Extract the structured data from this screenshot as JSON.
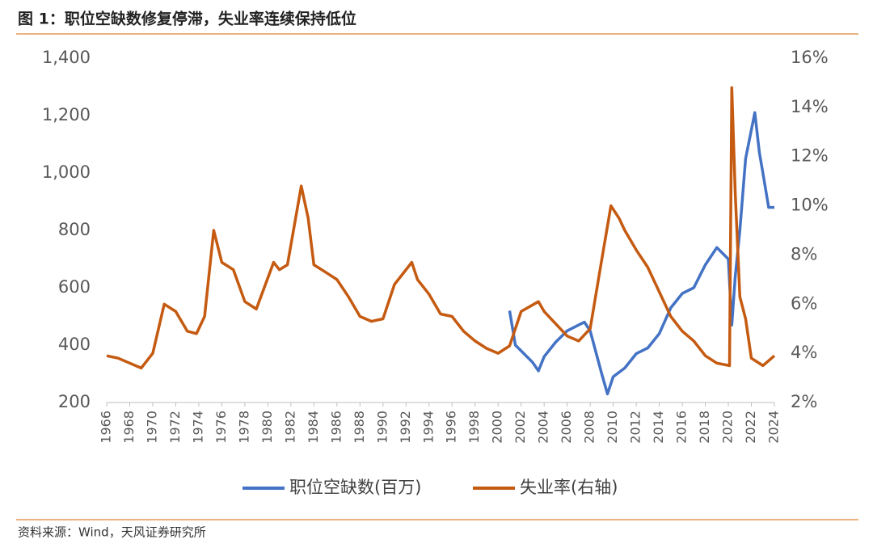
{
  "chart_data": {
    "type": "line",
    "title": "图 1：职位空缺数修复停滞，失业率连续保持低位",
    "source": "资料来源：Wind，天风证券研究所",
    "xlim": [
      1966,
      2024
    ],
    "xticks": [
      1966,
      1968,
      1970,
      1972,
      1974,
      1976,
      1978,
      1980,
      1982,
      1984,
      1986,
      1988,
      1990,
      1992,
      1994,
      1996,
      1998,
      2000,
      2002,
      2004,
      2006,
      2008,
      2010,
      2012,
      2014,
      2016,
      2018,
      2020,
      2022,
      2024
    ],
    "ylim": [
      200,
      1400
    ],
    "yticks": [
      200,
      400,
      600,
      800,
      {
        "value": 1000,
        "label": "1,000"
      },
      {
        "value": 1200,
        "label": "1,200"
      },
      {
        "value": 1400,
        "label": "1,400"
      }
    ],
    "y2lim": [
      2,
      16
    ],
    "y2ticks": [
      {
        "value": 2,
        "label": "2%"
      },
      {
        "value": 4,
        "label": "4%"
      },
      {
        "value": 6,
        "label": "6%"
      },
      {
        "value": 8,
        "label": "8%"
      },
      {
        "value": 10,
        "label": "10%"
      },
      {
        "value": 12,
        "label": "12%"
      },
      {
        "value": 14,
        "label": "14%"
      },
      {
        "value": 16,
        "label": "16%"
      }
    ],
    "series": [
      {
        "name": "职位空缺数(百万)",
        "color": "#4472c4",
        "axis": "y",
        "x": [
          2001,
          2001.5,
          2002,
          2003,
          2003.5,
          2004,
          2005,
          2006,
          2007,
          2007.5,
          2008,
          2009,
          2009.5,
          2010,
          2011,
          2012,
          2013,
          2014,
          2015,
          2016,
          2017,
          2018,
          2019,
          2019.5,
          2020,
          2020.3,
          2020.6,
          2021,
          2021.5,
          2022,
          2022.3,
          2022.7,
          2023,
          2023.5,
          2024
        ],
        "values": [
          520,
          400,
          380,
          340,
          310,
          360,
          410,
          450,
          470,
          480,
          450,
          300,
          230,
          290,
          320,
          370,
          390,
          440,
          530,
          580,
          600,
          680,
          740,
          720,
          700,
          470,
          640,
          800,
          1050,
          1150,
          1210,
          1070,
          1000,
          880,
          880
        ]
      },
      {
        "name": "失业率(右轴)",
        "color": "#c55a11",
        "axis": "y2",
        "x": [
          1966,
          1967,
          1968,
          1969,
          1970,
          1970.5,
          1971,
          1972,
          1973,
          1973.8,
          1974.5,
          1975.3,
          1976,
          1977,
          1978,
          1979,
          1980.5,
          1981,
          1981.7,
          1982.9,
          1983.5,
          1984,
          1985,
          1986,
          1987,
          1988,
          1989,
          1990,
          1991,
          1992.5,
          1993,
          1994,
          1995,
          1996,
          1997,
          1998,
          1999,
          2000,
          2001,
          2002,
          2003.5,
          2004,
          2005,
          2006,
          2007,
          2008,
          2009,
          2009.8,
          2010.5,
          2011,
          2012,
          2013,
          2014,
          2015,
          2016,
          2017,
          2018,
          2019,
          2020.1,
          2020.3,
          2020.6,
          2021,
          2021.5,
          2022,
          2023,
          2024
        ],
        "values": [
          3.9,
          3.8,
          3.6,
          3.4,
          4.0,
          5.0,
          6.0,
          5.7,
          4.9,
          4.8,
          5.5,
          9.0,
          7.7,
          7.4,
          6.1,
          5.8,
          7.7,
          7.4,
          7.6,
          10.8,
          9.5,
          7.6,
          7.3,
          7.0,
          6.3,
          5.5,
          5.3,
          5.4,
          6.8,
          7.7,
          7.0,
          6.4,
          5.6,
          5.5,
          4.9,
          4.5,
          4.2,
          4.0,
          4.3,
          5.7,
          6.1,
          5.7,
          5.2,
          4.7,
          4.5,
          5.0,
          7.8,
          10.0,
          9.5,
          9.0,
          8.2,
          7.5,
          6.5,
          5.5,
          4.9,
          4.5,
          3.9,
          3.6,
          3.5,
          14.8,
          10.5,
          6.3,
          5.4,
          3.8,
          3.5,
          3.9
        ]
      }
    ]
  }
}
